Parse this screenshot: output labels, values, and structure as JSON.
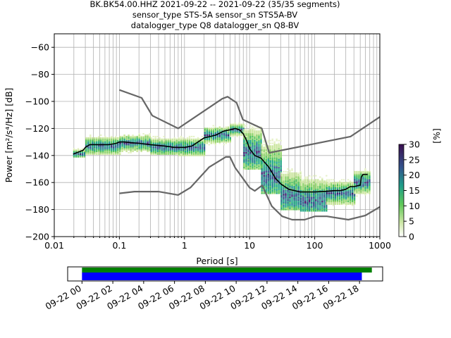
{
  "title": {
    "line1": "BK.BK54.00.HHZ   2021-09-22 -- 2021-09-22  (35/35 segments)",
    "line2": "sensor_type STS-5A sensor_sn STS5A-BV",
    "line3": "datalogger_type Q8 datalogger_sn Q8-BV"
  },
  "chart_data": {
    "type": "heatmap",
    "xlabel": "Period [s]",
    "ylabel": "Power [m²/s⁴/Hz] [dB]",
    "xscale": "log",
    "xlim": [
      0.01,
      1000
    ],
    "ylim": [
      -200,
      -50
    ],
    "xticks": [
      {
        "v": 0.01,
        "label": "0.01"
      },
      {
        "v": 0.1,
        "label": "0.1"
      },
      {
        "v": 1,
        "label": "1"
      },
      {
        "v": 10,
        "label": "10"
      },
      {
        "v": 100,
        "label": "100"
      },
      {
        "v": 1000,
        "label": "1000"
      }
    ],
    "yticks": [
      -60,
      -80,
      -100,
      -120,
      -140,
      -160,
      -180,
      -200
    ],
    "grid": true,
    "colorbar": {
      "label": "[%]",
      "min": 0,
      "max": 30,
      "ticks": [
        0,
        5,
        10,
        15,
        20,
        25,
        30
      ]
    },
    "series": [
      {
        "role": "mean",
        "color": "#000000",
        "x": [
          0.0195,
          0.022,
          0.025,
          0.028,
          0.03,
          0.035,
          0.05,
          0.07,
          0.09,
          0.1,
          0.12,
          0.15,
          0.2,
          0.3,
          0.5,
          0.7,
          1.0,
          1.3,
          2.0,
          3.0,
          4.0,
          5.0,
          6.0,
          7.0,
          8.0,
          9.0,
          10.0,
          12.0,
          15.0,
          20.0,
          25.0,
          30.0,
          40.0,
          60.0,
          100.0,
          150.0,
          200.0,
          250.0,
          300.0,
          350.0,
          400.0,
          500.0,
          520.0,
          550.0,
          650.0
        ],
        "y": [
          -139,
          -138,
          -137,
          -136,
          -134,
          -132,
          -132,
          -132,
          -131,
          -130,
          -130,
          -130.5,
          -131,
          -132,
          -133,
          -134,
          -134,
          -133,
          -127,
          -125,
          -122,
          -121,
          -120,
          -121,
          -124,
          -129,
          -135,
          -140,
          -142,
          -149,
          -157,
          -161,
          -165,
          -167,
          -167,
          -166.5,
          -166,
          -166,
          -165,
          -163,
          -163,
          -162,
          -156,
          -154,
          -154
        ]
      },
      {
        "role": "new_high_noise_model",
        "color": "#666666",
        "x": [
          0.1,
          0.22,
          0.32,
          0.8,
          3.8,
          4.6,
          6.3,
          7.9,
          15.4,
          20.0,
          354.8,
          1000.0
        ],
        "y": [
          -91.5,
          -97.4,
          -110.5,
          -120.0,
          -98.0,
          -96.5,
          -101.0,
          -113.5,
          -120.0,
          -138.0,
          -126.0,
          -111.5
        ]
      },
      {
        "role": "new_low_noise_model",
        "color": "#666666",
        "x": [
          0.1,
          0.17,
          0.4,
          0.8,
          1.24,
          2.4,
          4.3,
          5.0,
          6.0,
          10.0,
          12.0,
          15.6,
          21.9,
          31.6,
          45.0,
          70.0,
          101.0,
          154.0,
          328.0,
          600.0,
          1000.0
        ],
        "y": [
          -168.0,
          -166.7,
          -166.7,
          -169.2,
          -163.7,
          -148.6,
          -141.1,
          -141.1,
          -149.0,
          -163.8,
          -166.2,
          -162.1,
          -177.5,
          -185.0,
          -187.5,
          -187.5,
          -185.0,
          -185.0,
          -187.5,
          -184.4,
          -178.0
        ]
      }
    ],
    "density": [
      {
        "x0": 0.0195,
        "x1": 0.03,
        "lo": -141,
        "hi": -135,
        "peak": -139
      },
      {
        "x0": 0.03,
        "x1": 0.1,
        "lo": -139,
        "hi": -125,
        "peak": -133
      },
      {
        "x0": 0.1,
        "x1": 0.3,
        "lo": -138,
        "hi": -124,
        "peak": -131
      },
      {
        "x0": 0.3,
        "x1": 0.8,
        "lo": -139,
        "hi": -126,
        "peak": -134
      },
      {
        "x0": 0.8,
        "x1": 2.0,
        "lo": -140,
        "hi": -126,
        "peak": -134
      },
      {
        "x0": 2.0,
        "x1": 5.0,
        "lo": -132,
        "hi": -118,
        "peak": -125
      },
      {
        "x0": 5.0,
        "x1": 8.0,
        "lo": -126,
        "hi": -116,
        "peak": -121
      },
      {
        "x0": 8.0,
        "x1": 15.0,
        "lo": -150,
        "hi": -118,
        "peak": -138
      },
      {
        "x0": 15.0,
        "x1": 30.0,
        "lo": -168,
        "hi": -128,
        "peak": -155
      },
      {
        "x0": 30.0,
        "x1": 60.0,
        "lo": -180,
        "hi": -150,
        "peak": -170
      },
      {
        "x0": 60.0,
        "x1": 150.0,
        "lo": -181,
        "hi": -155,
        "peak": -174
      },
      {
        "x0": 150.0,
        "x1": 400.0,
        "lo": -177,
        "hi": -158,
        "peak": -168
      },
      {
        "x0": 400.0,
        "x1": 700.0,
        "lo": -170,
        "hi": -150,
        "peak": -160
      }
    ],
    "timeline": {
      "ticks": [
        "09-22 00",
        "09-22 02",
        "09-22 04",
        "09-22 06",
        "09-22 08",
        "09-22 10",
        "09-22 12",
        "09-22 14",
        "09-22 16",
        "09-22 18"
      ],
      "tick_hours": [
        0,
        2,
        4,
        6,
        8,
        10,
        12,
        14,
        16,
        18
      ],
      "range_hours": [
        -0.93,
        19.5
      ],
      "data_bar": {
        "start": 0,
        "end": 18.8,
        "color": "#008000"
      },
      "psd_bar": {
        "start": 0,
        "end": 18.15,
        "color": "#0000ff"
      }
    }
  }
}
